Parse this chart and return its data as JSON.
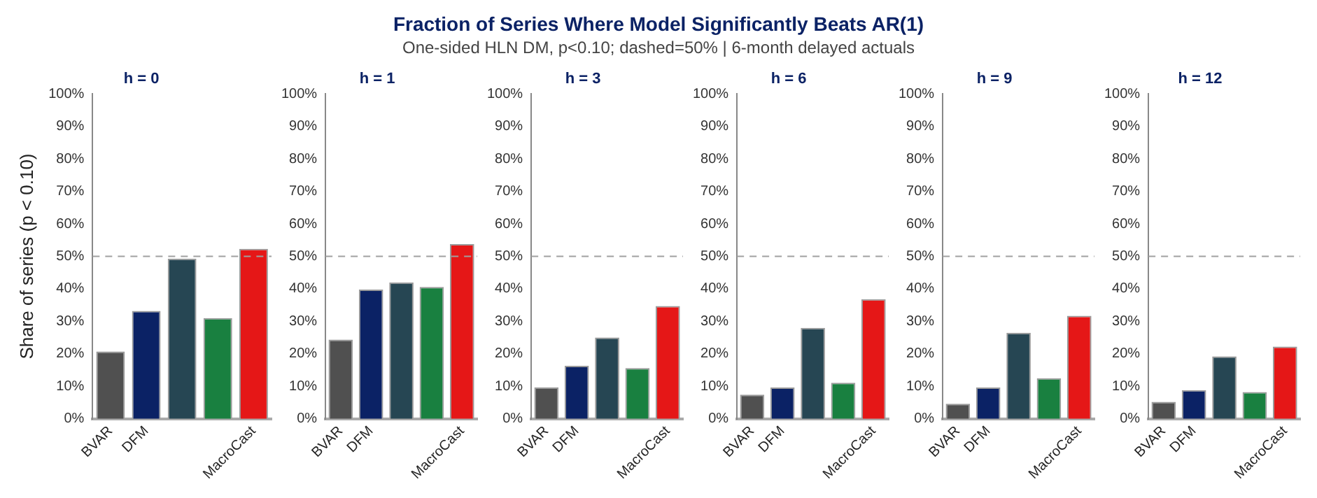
{
  "chart_data": [
    {
      "type": "bar",
      "title": "h = 0",
      "ylabel": "Share of series (p < 0.10)",
      "annotations": [
        "Fraction of Series Where Model Significantly Beats AR(1)",
        "One-sided HLN DM, p<0.10; dashed=50% | 6-month delayed actuals"
      ],
      "categories": [
        "BVAR",
        "DFM",
        null,
        null,
        "MacroCast"
      ],
      "values": [
        20.7,
        33.2,
        49.3,
        31.0,
        52.3
      ],
      "colors": [
        "#505050",
        "#0b2265",
        "#264653",
        "#198040",
        "#e51717"
      ],
      "ylim": [
        0,
        100
      ],
      "yticks": [
        {
          "value": 0,
          "label": "0%"
        },
        {
          "value": 10,
          "label": "10%"
        },
        {
          "value": 20,
          "label": "20%"
        },
        {
          "value": 30,
          "label": "30%"
        },
        {
          "value": 40,
          "label": "40%"
        },
        {
          "value": 50,
          "label": "50%"
        },
        {
          "value": 60,
          "label": "60%"
        },
        {
          "value": 70,
          "label": "70%"
        },
        {
          "value": 80,
          "label": "80%"
        },
        {
          "value": 90,
          "label": "90%"
        },
        {
          "value": 100,
          "label": "100%"
        }
      ],
      "grid": false,
      "ref_lines": [
        {
          "axis": "y",
          "value": 50,
          "color": "#a0a0a0",
          "line_style": "dashed"
        }
      ]
    },
    {
      "type": "bar",
      "title": "h = 1",
      "categories": [
        "BVAR",
        "DFM",
        null,
        null,
        "MacroCast"
      ],
      "values": [
        24.4,
        39.8,
        42.0,
        40.6,
        53.8
      ],
      "colors": [
        "#505050",
        "#0b2265",
        "#264653",
        "#198040",
        "#e51717"
      ],
      "ylim": [
        0,
        100
      ],
      "yticks": [
        {
          "value": 0,
          "label": "0%"
        },
        {
          "value": 10,
          "label": "10%"
        },
        {
          "value": 20,
          "label": "20%"
        },
        {
          "value": 30,
          "label": "30%"
        },
        {
          "value": 40,
          "label": "40%"
        },
        {
          "value": 50,
          "label": "50%"
        },
        {
          "value": 60,
          "label": "60%"
        },
        {
          "value": 70,
          "label": "70%"
        },
        {
          "value": 80,
          "label": "80%"
        },
        {
          "value": 90,
          "label": "90%"
        },
        {
          "value": 100,
          "label": "100%"
        }
      ],
      "grid": false,
      "ref_lines": [
        {
          "axis": "y",
          "value": 50,
          "color": "#a0a0a0",
          "line_style": "dashed"
        }
      ]
    },
    {
      "type": "bar",
      "title": "h = 3",
      "categories": [
        "BVAR",
        "DFM",
        null,
        null,
        "MacroCast"
      ],
      "values": [
        9.7,
        16.3,
        25.0,
        15.6,
        34.7
      ],
      "colors": [
        "#505050",
        "#0b2265",
        "#264653",
        "#198040",
        "#e51717"
      ],
      "ylim": [
        0,
        100
      ],
      "yticks": [
        {
          "value": 0,
          "label": "0%"
        },
        {
          "value": 10,
          "label": "10%"
        },
        {
          "value": 20,
          "label": "20%"
        },
        {
          "value": 30,
          "label": "30%"
        },
        {
          "value": 40,
          "label": "40%"
        },
        {
          "value": 50,
          "label": "50%"
        },
        {
          "value": 60,
          "label": "60%"
        },
        {
          "value": 70,
          "label": "70%"
        },
        {
          "value": 80,
          "label": "80%"
        },
        {
          "value": 90,
          "label": "90%"
        },
        {
          "value": 100,
          "label": "100%"
        }
      ],
      "grid": false,
      "ref_lines": [
        {
          "axis": "y",
          "value": 50,
          "color": "#a0a0a0",
          "line_style": "dashed"
        }
      ]
    },
    {
      "type": "bar",
      "title": "h = 6",
      "categories": [
        "BVAR",
        "DFM",
        null,
        null,
        "MacroCast"
      ],
      "values": [
        7.4,
        9.6,
        28.0,
        11.1,
        36.8
      ],
      "colors": [
        "#505050",
        "#0b2265",
        "#264653",
        "#198040",
        "#e51717"
      ],
      "ylim": [
        0,
        100
      ],
      "yticks": [
        {
          "value": 0,
          "label": "0%"
        },
        {
          "value": 10,
          "label": "10%"
        },
        {
          "value": 20,
          "label": "20%"
        },
        {
          "value": 30,
          "label": "30%"
        },
        {
          "value": 40,
          "label": "40%"
        },
        {
          "value": 50,
          "label": "50%"
        },
        {
          "value": 60,
          "label": "60%"
        },
        {
          "value": 70,
          "label": "70%"
        },
        {
          "value": 80,
          "label": "80%"
        },
        {
          "value": 90,
          "label": "90%"
        },
        {
          "value": 100,
          "label": "100%"
        }
      ],
      "grid": false,
      "ref_lines": [
        {
          "axis": "y",
          "value": 50,
          "color": "#a0a0a0",
          "line_style": "dashed"
        }
      ]
    },
    {
      "type": "bar",
      "title": "h = 9",
      "categories": [
        "BVAR",
        "DFM",
        null,
        null,
        "MacroCast"
      ],
      "values": [
        4.6,
        9.6,
        26.5,
        12.5,
        31.7
      ],
      "colors": [
        "#505050",
        "#0b2265",
        "#264653",
        "#198040",
        "#e51717"
      ],
      "ylim": [
        0,
        100
      ],
      "yticks": [
        {
          "value": 0,
          "label": "0%"
        },
        {
          "value": 10,
          "label": "10%"
        },
        {
          "value": 20,
          "label": "20%"
        },
        {
          "value": 30,
          "label": "30%"
        },
        {
          "value": 40,
          "label": "40%"
        },
        {
          "value": 50,
          "label": "50%"
        },
        {
          "value": 60,
          "label": "60%"
        },
        {
          "value": 70,
          "label": "70%"
        },
        {
          "value": 80,
          "label": "80%"
        },
        {
          "value": 90,
          "label": "90%"
        },
        {
          "value": 100,
          "label": "100%"
        }
      ],
      "grid": false,
      "ref_lines": [
        {
          "axis": "y",
          "value": 50,
          "color": "#a0a0a0",
          "line_style": "dashed"
        }
      ]
    },
    {
      "type": "bar",
      "title": "h = 12",
      "categories": [
        "BVAR",
        "DFM",
        null,
        null,
        "MacroCast"
      ],
      "values": [
        5.2,
        8.8,
        19.2,
        8.2,
        22.2
      ],
      "colors": [
        "#505050",
        "#0b2265",
        "#264653",
        "#198040",
        "#e51717"
      ],
      "ylim": [
        0,
        100
      ],
      "yticks": [
        {
          "value": 0,
          "label": "0%"
        },
        {
          "value": 10,
          "label": "10%"
        },
        {
          "value": 20,
          "label": "20%"
        },
        {
          "value": 30,
          "label": "30%"
        },
        {
          "value": 40,
          "label": "40%"
        },
        {
          "value": 50,
          "label": "50%"
        },
        {
          "value": 60,
          "label": "60%"
        },
        {
          "value": 70,
          "label": "70%"
        },
        {
          "value": 80,
          "label": "80%"
        },
        {
          "value": 90,
          "label": "90%"
        },
        {
          "value": 100,
          "label": "100%"
        }
      ],
      "grid": false,
      "ref_lines": [
        {
          "axis": "y",
          "value": 50,
          "color": "#a0a0a0",
          "line_style": "dashed"
        }
      ]
    }
  ]
}
